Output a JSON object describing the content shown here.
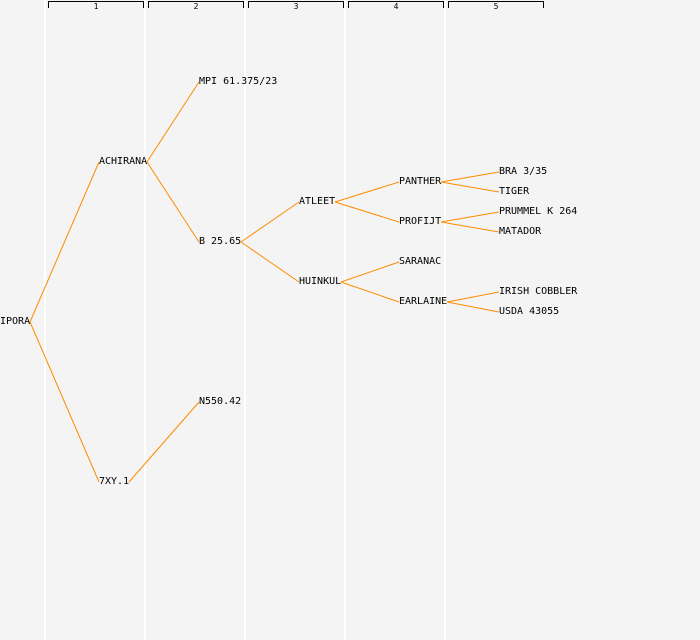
{
  "generations": [
    "1",
    "2",
    "3",
    "4",
    "5"
  ],
  "line_color": "#ff8c00",
  "nodes": [
    {
      "id": "ipora",
      "label": "IPORA",
      "gen": 0,
      "parent": null
    },
    {
      "id": "achirana",
      "label": "ACHIRANA",
      "gen": 1,
      "parent": "ipora"
    },
    {
      "id": "7xy1",
      "label": "7XY.1",
      "gen": 1,
      "parent": "ipora"
    },
    {
      "id": "mpi",
      "label": "MPI 61.375/23",
      "gen": 2,
      "parent": "achirana"
    },
    {
      "id": "b2565",
      "label": "B 25.65",
      "gen": 2,
      "parent": "achirana"
    },
    {
      "id": "n55042",
      "label": "N550.42",
      "gen": 2,
      "parent": "7xy1"
    },
    {
      "id": "atleet",
      "label": "ATLEET",
      "gen": 3,
      "parent": "b2565"
    },
    {
      "id": "huinkul",
      "label": "HUINKUL",
      "gen": 3,
      "parent": "b2565"
    },
    {
      "id": "panther",
      "label": "PANTHER",
      "gen": 4,
      "parent": "atleet"
    },
    {
      "id": "profijt",
      "label": "PROFIJT",
      "gen": 4,
      "parent": "atleet"
    },
    {
      "id": "saranac",
      "label": "SARANAC",
      "gen": 4,
      "parent": "huinkul"
    },
    {
      "id": "earlaine",
      "label": "EARLAINE",
      "gen": 4,
      "parent": "huinkul"
    },
    {
      "id": "bra",
      "label": "BRA 3/35",
      "gen": 5,
      "parent": "panther"
    },
    {
      "id": "tiger",
      "label": "TIGER",
      "gen": 5,
      "parent": "panther"
    },
    {
      "id": "prummel",
      "label": "PRUMMEL K 264",
      "gen": 5,
      "parent": "profijt"
    },
    {
      "id": "matador",
      "label": "MATADOR",
      "gen": 5,
      "parent": "profijt"
    },
    {
      "id": "irish",
      "label": "IRISH COBBLER",
      "gen": 5,
      "parent": "earlaine"
    },
    {
      "id": "usda",
      "label": "USDA 43055",
      "gen": 5,
      "parent": "earlaine"
    }
  ]
}
